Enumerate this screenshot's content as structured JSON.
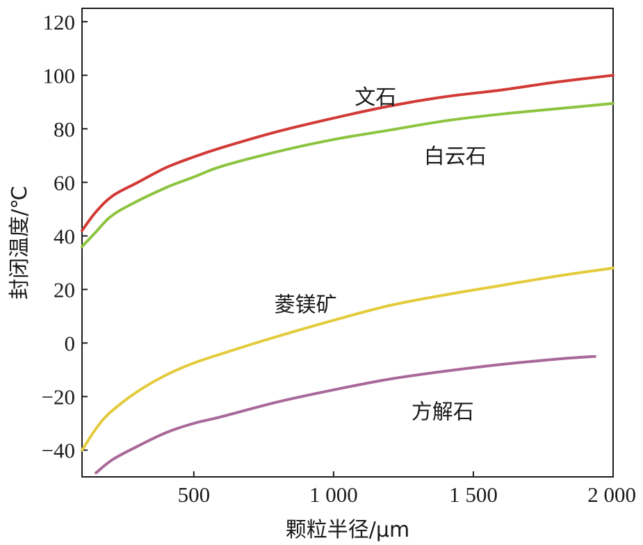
{
  "chart_data": {
    "type": "line",
    "title": "",
    "xlabel": "颗粒半径/μm",
    "ylabel": "封闭温度/℃",
    "xlim": [
      100,
      2000
    ],
    "ylim": [
      -50,
      125
    ],
    "x_ticks": [
      {
        "value": 500,
        "label": "500"
      },
      {
        "value": 1000,
        "label": "1 000"
      },
      {
        "value": 1500,
        "label": "1 500"
      },
      {
        "value": 2000,
        "label": "2 000"
      }
    ],
    "y_ticks": [
      {
        "value": 120,
        "label": "120"
      },
      {
        "value": 100,
        "label": "100"
      },
      {
        "value": 80,
        "label": "80"
      },
      {
        "value": 60,
        "label": "60"
      },
      {
        "value": 40,
        "label": "40"
      },
      {
        "value": 20,
        "label": "20"
      },
      {
        "value": 0,
        "label": "0"
      },
      {
        "value": -20,
        "label": "−20"
      },
      {
        "value": -40,
        "label": "−40"
      }
    ],
    "grid": false,
    "series": [
      {
        "name": "文石",
        "color": "#d13a35",
        "label_at": [
          1150,
          92
        ],
        "points": [
          [
            100,
            42
          ],
          [
            150,
            49
          ],
          [
            210,
            55
          ],
          [
            300,
            60
          ],
          [
            400,
            65.5
          ],
          [
            500,
            69.5
          ],
          [
            600,
            73
          ],
          [
            800,
            79
          ],
          [
            1000,
            84
          ],
          [
            1200,
            88.5
          ],
          [
            1400,
            92
          ],
          [
            1600,
            94.5
          ],
          [
            1800,
            97.5
          ],
          [
            2000,
            100
          ]
        ]
      },
      {
        "name": "白云石",
        "color": "#8cc43f",
        "label_at": [
          1435,
          70
        ],
        "points": [
          [
            100,
            36
          ],
          [
            150,
            41.5
          ],
          [
            200,
            47
          ],
          [
            270,
            51.5
          ],
          [
            400,
            58
          ],
          [
            500,
            62
          ],
          [
            600,
            66
          ],
          [
            800,
            71.5
          ],
          [
            1000,
            76
          ],
          [
            1200,
            79.5
          ],
          [
            1400,
            83
          ],
          [
            1600,
            85.5
          ],
          [
            1800,
            87.5
          ],
          [
            2000,
            89.5
          ]
        ]
      },
      {
        "name": "菱镁矿",
        "color": "#e3cb3c",
        "label_at": [
          900,
          14.5
        ],
        "points": [
          [
            100,
            -40
          ],
          [
            150,
            -32
          ],
          [
            200,
            -26
          ],
          [
            300,
            -18
          ],
          [
            400,
            -12
          ],
          [
            500,
            -7.5
          ],
          [
            600,
            -4
          ],
          [
            800,
            2.5
          ],
          [
            1000,
            8.5
          ],
          [
            1200,
            14
          ],
          [
            1400,
            18
          ],
          [
            1600,
            21.5
          ],
          [
            1800,
            25
          ],
          [
            2000,
            28
          ]
        ]
      },
      {
        "name": "方解石",
        "color": "#a86899",
        "label_at": [
          1390,
          -25.5
        ],
        "points": [
          [
            150,
            -48.5
          ],
          [
            210,
            -43.5
          ],
          [
            300,
            -38.5
          ],
          [
            400,
            -33.5
          ],
          [
            500,
            -30
          ],
          [
            600,
            -27.5
          ],
          [
            800,
            -22
          ],
          [
            1000,
            -17.5
          ],
          [
            1200,
            -13.5
          ],
          [
            1400,
            -10.5
          ],
          [
            1600,
            -8
          ],
          [
            1800,
            -6
          ],
          [
            1935,
            -5
          ]
        ]
      }
    ]
  }
}
